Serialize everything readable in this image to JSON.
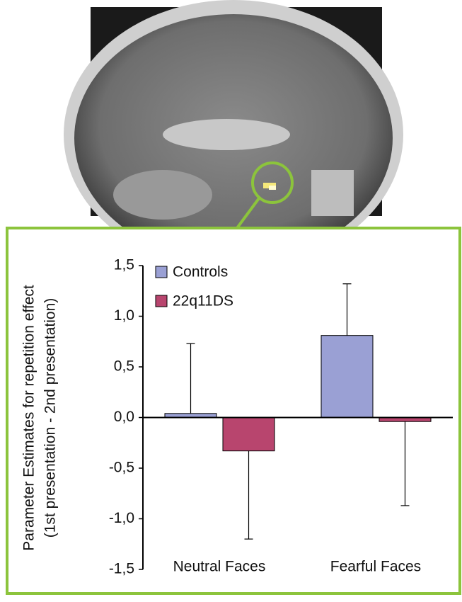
{
  "chart_data": {
    "type": "bar",
    "ylabel": [
      "Parameter Estimates for repetition effect",
      "(1st presentation - 2nd presentation)"
    ],
    "categories": [
      "Neutral Faces",
      "Fearful Faces"
    ],
    "series": [
      {
        "name": "Controls",
        "color": "#9aa0d4",
        "values": [
          0.04,
          0.81
        ],
        "errors": [
          0.69,
          0.51
        ]
      },
      {
        "name": "22q11DS",
        "color": "#b8456e",
        "values": [
          -0.33,
          -0.04
        ],
        "errors": [
          0.87,
          0.83
        ]
      }
    ],
    "ylim": [
      -1.5,
      1.5
    ],
    "yticks": [
      {
        "value": 1.5,
        "label": "1,5"
      },
      {
        "value": 1.0,
        "label": "1,0"
      },
      {
        "value": 0.5,
        "label": "0,5"
      },
      {
        "value": 0.0,
        "label": "0,0"
      },
      {
        "value": -0.5,
        "label": "-0,5"
      },
      {
        "value": -1.0,
        "label": "-1,0"
      },
      {
        "value": -1.5,
        "label": "-1,5"
      }
    ]
  }
}
